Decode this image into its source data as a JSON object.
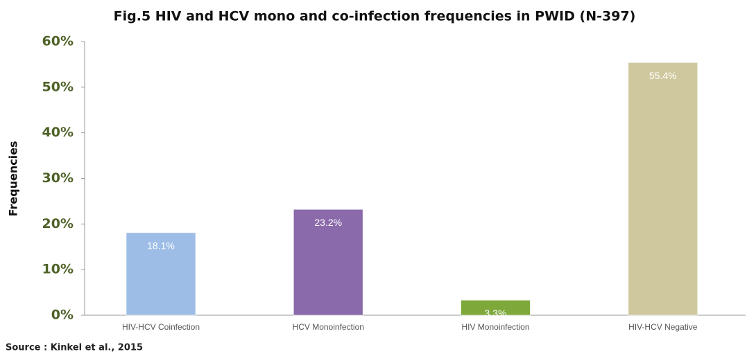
{
  "chart_data": {
    "type": "bar",
    "title": "Fig.5 HIV and HCV mono and co-infection frequencies in PWID (N-397)",
    "y_label": "Frequencies",
    "source": "Source : Kinkel et al., 2015",
    "categories": [
      "HIV-HCV Coinfection",
      "HCV Monoinfection",
      "HIV Monoinfection",
      "HIV-HCV Negative"
    ],
    "values": [
      18.1,
      23.2,
      3.3,
      55.4
    ],
    "value_labels": [
      "18.1%",
      "23.2%",
      "3.3%",
      "55.4%"
    ],
    "colors": [
      "#9dbde6",
      "#8a6aaa",
      "#7ea83a",
      "#cfc89e"
    ],
    "ylim": [
      0,
      60
    ],
    "yticks": [
      {
        "value": 0,
        "label": "0%"
      },
      {
        "value": 10,
        "label": "10%"
      },
      {
        "value": 20,
        "label": "20%"
      },
      {
        "value": 30,
        "label": "30%"
      },
      {
        "value": 40,
        "label": "40%"
      },
      {
        "value": 50,
        "label": "50%"
      },
      {
        "value": 60,
        "label": "60%"
      }
    ],
    "grid": false
  }
}
